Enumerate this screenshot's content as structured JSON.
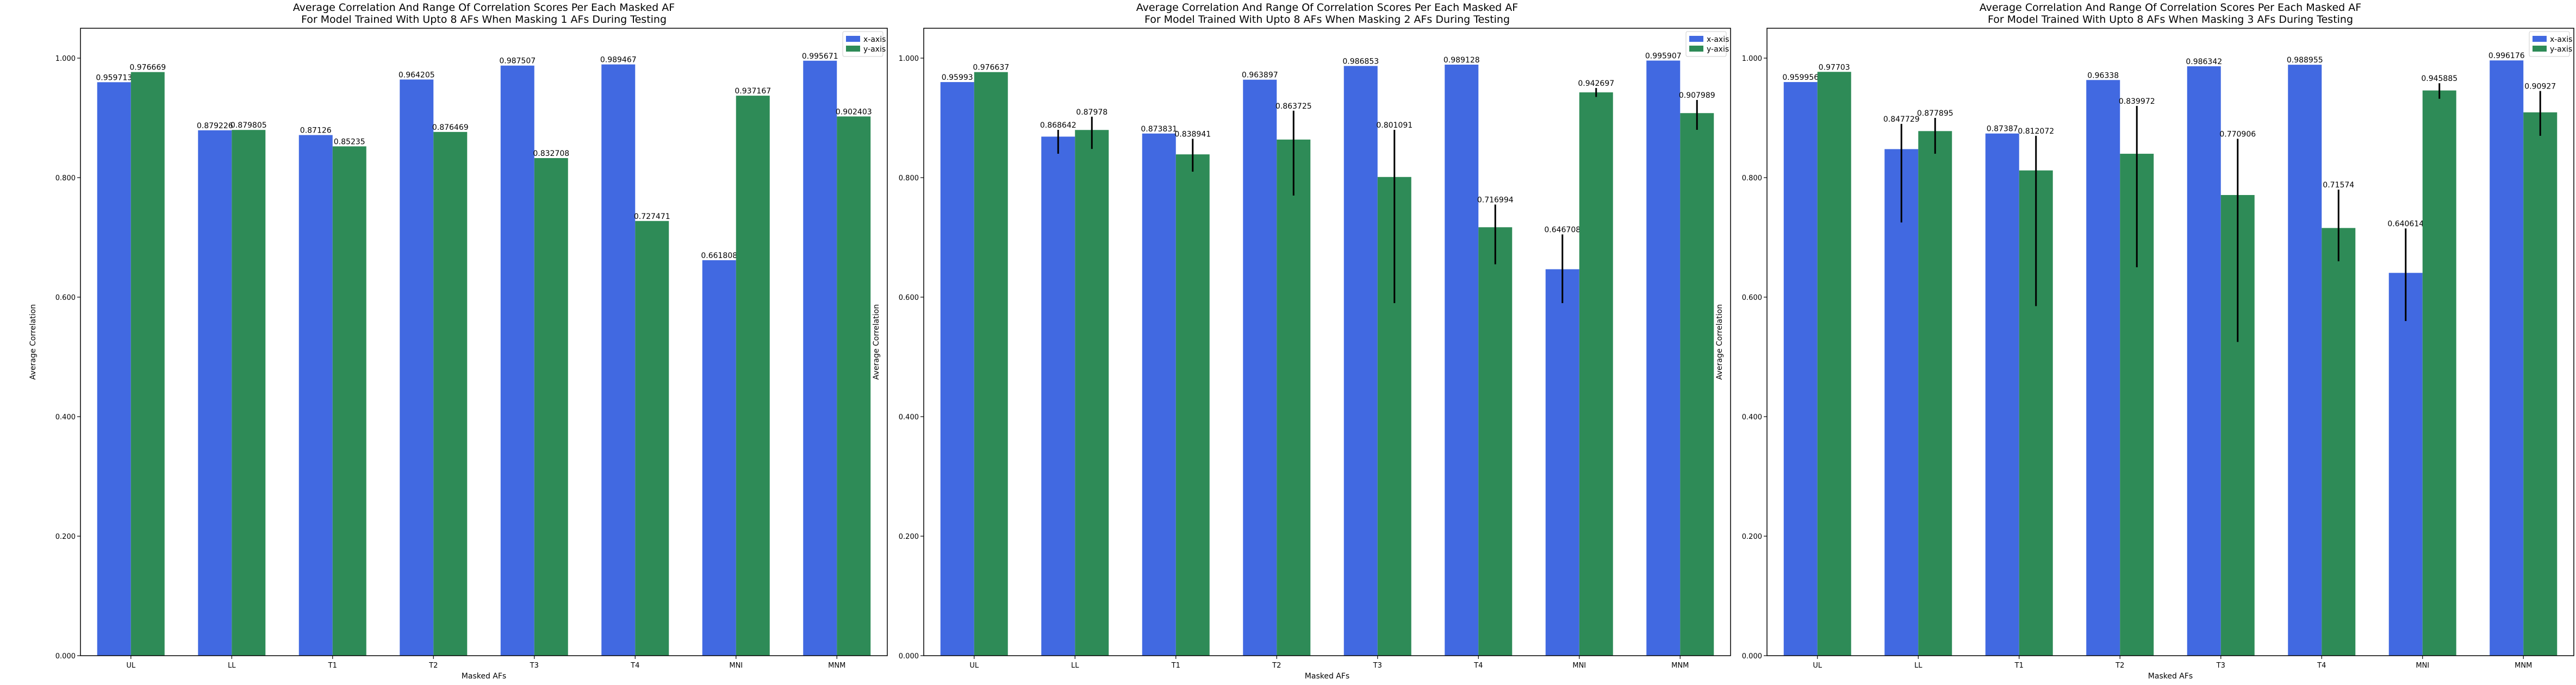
{
  "figure": {
    "colors": {
      "x_axis_bar": "#4169e1",
      "y_axis_bar": "#2e8b57",
      "error_bar": "#000000"
    }
  },
  "chart_data": [
    {
      "type": "bar",
      "title": "Average Correlation And Range Of Correlation Scores Per Each Masked AF\nFor Model Trained With Upto 8 AFs When Masking 1 AFs During Testing",
      "xlabel": "Masked AFs",
      "ylabel": "Average Correlation",
      "ylim": [
        0,
        1.05
      ],
      "yticks": [
        "0.000",
        "0.200",
        "0.400",
        "0.600",
        "0.800",
        "1.000"
      ],
      "legend_position": "top-right",
      "categories": [
        "UL",
        "LL",
        "T1",
        "T2",
        "T3",
        "T4",
        "MNI",
        "MNM"
      ],
      "series": [
        {
          "name": "x-axis",
          "values": [
            0.959713,
            0.879226,
            0.87126,
            0.964205,
            0.987507,
            0.989467,
            0.661808,
            0.995671
          ],
          "labels": [
            "0.959713",
            "0.879226",
            "0.87126",
            "0.964205",
            "0.987507",
            "0.989467",
            "0.661808",
            "0.995671"
          ],
          "error_range": [
            null,
            null,
            null,
            null,
            null,
            null,
            null,
            null
          ]
        },
        {
          "name": "y-axis",
          "values": [
            0.976669,
            0.879805,
            0.85235,
            0.876469,
            0.832708,
            0.727471,
            0.937167,
            0.902403
          ],
          "labels": [
            "0.976669",
            "0.879805",
            "0.85235",
            "0.876469",
            "0.832708",
            "0.727471",
            "0.937167",
            "0.902403"
          ],
          "error_range": [
            null,
            null,
            null,
            null,
            null,
            null,
            null,
            null
          ]
        }
      ]
    },
    {
      "type": "bar",
      "title": "Average Correlation And Range Of Correlation Scores Per Each Masked AF\nFor Model Trained With Upto 8 AFs When Masking 2 AFs During Testing",
      "xlabel": "Masked AFs",
      "ylabel": "Average Correlation",
      "ylim": [
        0,
        1.05
      ],
      "yticks": [
        "0.000",
        "0.200",
        "0.400",
        "0.600",
        "0.800",
        "1.000"
      ],
      "legend_position": "top-right",
      "categories": [
        "UL",
        "LL",
        "T1",
        "T2",
        "T3",
        "T4",
        "MNI",
        "MNM"
      ],
      "series": [
        {
          "name": "x-axis",
          "values": [
            0.95993,
            0.868642,
            0.873831,
            0.963897,
            0.986853,
            0.989128,
            0.646708,
            0.995907
          ],
          "labels": [
            "0.95993",
            "0.868642",
            "0.873831",
            "0.963897",
            "0.986853",
            "0.989128",
            "0.646708",
            "0.995907"
          ],
          "error_range": [
            null,
            [
              0.84,
              0.88
            ],
            null,
            null,
            null,
            null,
            [
              0.59,
              0.705
            ],
            null
          ]
        },
        {
          "name": "y-axis",
          "values": [
            0.976637,
            0.87978,
            0.838941,
            0.863725,
            0.801091,
            0.716994,
            0.942697,
            0.907989
          ],
          "labels": [
            "0.976637",
            "0.87978",
            "0.838941",
            "0.863725",
            "0.801091",
            "0.716994",
            "0.942697",
            "0.907989"
          ],
          "error_range": [
            null,
            [
              0.848,
              0.902
            ],
            [
              0.81,
              0.865
            ],
            [
              0.77,
              0.912
            ],
            [
              0.59,
              0.88
            ],
            [
              0.655,
              0.755
            ],
            [
              0.935,
              0.95
            ],
            [
              0.88,
              0.93
            ]
          ]
        }
      ]
    },
    {
      "type": "bar",
      "title": "Average Correlation And Range Of Correlation Scores Per Each Masked AF\nFor Model Trained With Upto 8 AFs When Masking 3 AFs During Testing",
      "xlabel": "Masked AFs",
      "ylabel": "Average Correlation",
      "ylim": [
        0,
        1.05
      ],
      "yticks": [
        "0.000",
        "0.200",
        "0.400",
        "0.600",
        "0.800",
        "1.000"
      ],
      "legend_position": "top-right",
      "categories": [
        "UL",
        "LL",
        "T1",
        "T2",
        "T3",
        "T4",
        "MNI",
        "MNM"
      ],
      "series": [
        {
          "name": "x-axis",
          "values": [
            0.959956,
            0.847729,
            0.87387,
            0.96338,
            0.986342,
            0.988955,
            0.640614,
            0.996176
          ],
          "labels": [
            "0.959956",
            "0.847729",
            "0.87387",
            "0.96338",
            "0.986342",
            "0.988955",
            "0.640614",
            "0.996176"
          ],
          "error_range": [
            null,
            [
              0.725,
              0.89
            ],
            null,
            null,
            null,
            null,
            [
              0.56,
              0.715
            ],
            null
          ]
        },
        {
          "name": "y-axis",
          "values": [
            0.97703,
            0.877895,
            0.812072,
            0.839972,
            0.770906,
            0.71574,
            0.945885,
            0.90927
          ],
          "labels": [
            "0.97703",
            "0.877895",
            "0.812072",
            "0.839972",
            "0.770906",
            "0.71574",
            "0.945885",
            "0.90927"
          ],
          "error_range": [
            null,
            [
              0.84,
              0.9
            ],
            [
              0.585,
              0.87
            ],
            [
              0.65,
              0.92
            ],
            [
              0.525,
              0.865
            ],
            [
              0.66,
              0.78
            ],
            [
              0.932,
              0.958
            ],
            [
              0.87,
              0.945
            ]
          ]
        }
      ]
    }
  ]
}
